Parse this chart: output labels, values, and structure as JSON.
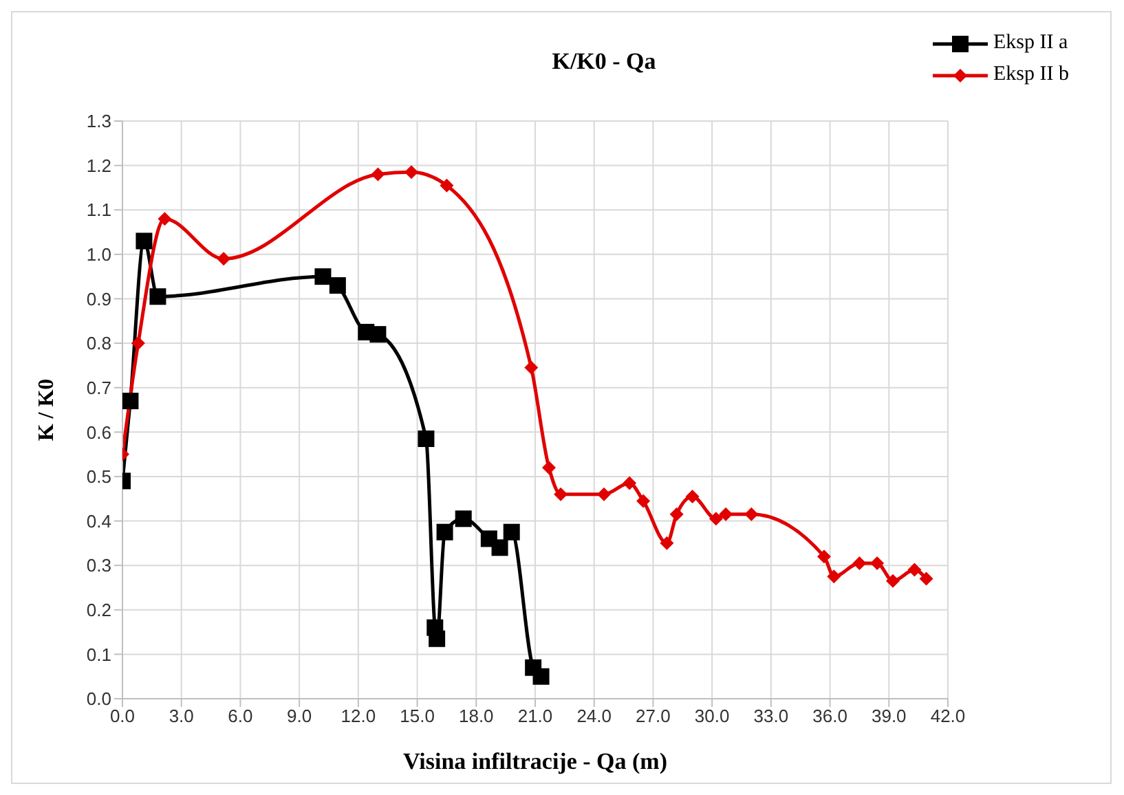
{
  "chart_data": {
    "type": "line",
    "title": "K/K0 - Qa",
    "xlabel": "Visina infiltracije - Qa (m)",
    "ylabel": "K / K0",
    "xlim": [
      0,
      42
    ],
    "xticks": [
      {
        "value": 0,
        "label": "0.0"
      },
      {
        "value": 3,
        "label": "3.0"
      },
      {
        "value": 6,
        "label": "6.0"
      },
      {
        "value": 9,
        "label": "9.0"
      },
      {
        "value": 12,
        "label": "12.0"
      },
      {
        "value": 15,
        "label": "15.0"
      },
      {
        "value": 18,
        "label": "18.0"
      },
      {
        "value": 21,
        "label": "21.0"
      },
      {
        "value": 24,
        "label": "24.0"
      },
      {
        "value": 27,
        "label": "27.0"
      },
      {
        "value": 30,
        "label": "30.0"
      },
      {
        "value": 33,
        "label": "33.0"
      },
      {
        "value": 36,
        "label": "36.0"
      },
      {
        "value": 39,
        "label": "39.0"
      },
      {
        "value": 42,
        "label": "42.0"
      }
    ],
    "ylim": [
      0,
      1.3
    ],
    "yticks": [
      {
        "value": 0,
        "label": "0.0"
      },
      {
        "value": 0.1,
        "label": "0.1"
      },
      {
        "value": 0.2,
        "label": "0.2"
      },
      {
        "value": 0.3,
        "label": "0.3"
      },
      {
        "value": 0.4,
        "label": "0.4"
      },
      {
        "value": 0.5,
        "label": "0.5"
      },
      {
        "value": 0.6,
        "label": "0.6"
      },
      {
        "value": 0.7,
        "label": "0.7"
      },
      {
        "value": 0.8,
        "label": "0.8"
      },
      {
        "value": 0.9,
        "label": "0.9"
      },
      {
        "value": 1.0,
        "label": "1.0"
      },
      {
        "value": 1.1,
        "label": "1.1"
      },
      {
        "value": 1.2,
        "label": "1.2"
      },
      {
        "value": 1.3,
        "label": "1.3"
      }
    ],
    "grid": true,
    "legend": "top right",
    "line_style": "solid",
    "series": [
      {
        "name": "Eksp II a",
        "color": "#000000",
        "marker": "square",
        "x": [
          0,
          0.4,
          1.1,
          1.8,
          10.2,
          10.95,
          12.4,
          13.0,
          15.45,
          15.9,
          16.0,
          16.4,
          17.35,
          18.65,
          19.2,
          19.8,
          20.9,
          21.3
        ],
        "values": [
          0.49,
          0.67,
          1.03,
          0.905,
          0.95,
          0.93,
          0.825,
          0.82,
          0.585,
          0.16,
          0.135,
          0.375,
          0.405,
          0.36,
          0.34,
          0.375,
          0.07,
          0.05
        ]
      },
      {
        "name": "Eksp II b",
        "color": "#e00000",
        "marker": "diamond",
        "x": [
          0,
          0.8,
          2.15,
          5.15,
          13.0,
          14.7,
          16.5,
          20.8,
          21.7,
          22.3,
          24.5,
          25.8,
          26.5,
          27.7,
          28.2,
          29.0,
          30.2,
          30.7,
          32.0,
          35.7,
          36.2,
          37.5,
          38.4,
          39.2,
          40.3,
          40.9
        ],
        "values": [
          0.55,
          0.8,
          1.08,
          0.99,
          1.18,
          1.185,
          1.155,
          0.745,
          0.52,
          0.46,
          0.46,
          0.485,
          0.445,
          0.35,
          0.415,
          0.455,
          0.405,
          0.415,
          0.415,
          0.32,
          0.275,
          0.305,
          0.305,
          0.265,
          0.29,
          0.27
        ]
      }
    ]
  }
}
